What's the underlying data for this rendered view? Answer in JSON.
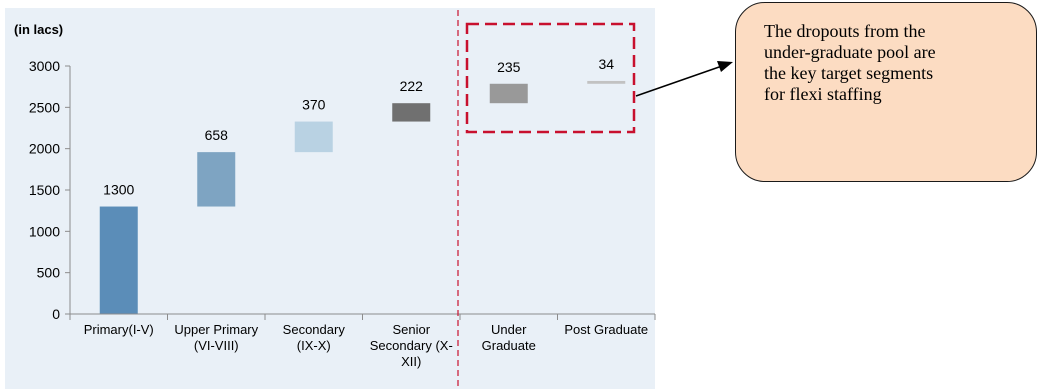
{
  "chart_data": {
    "type": "bar",
    "subtype": "waterfall",
    "unit_label": "(in lacs)",
    "ylim": [
      0,
      3000
    ],
    "yticks": [
      0,
      500,
      1000,
      1500,
      2000,
      2500,
      3000
    ],
    "categories": [
      [
        "Primary(I-V)"
      ],
      [
        "Upper Primary",
        "(VI-VIII)"
      ],
      [
        "Secondary",
        "(IX-X)"
      ],
      [
        "Senior",
        "Secondary (X-",
        "XII)"
      ],
      [
        "Under",
        "Graduate"
      ],
      [
        "Post Graduate"
      ]
    ],
    "values": [
      1300,
      658,
      370,
      222,
      235,
      34
    ],
    "bar_base": [
      0,
      1300,
      1958,
      2328,
      2550,
      2785
    ],
    "data_labels": [
      "1300",
      "658",
      "370",
      "222",
      "235",
      "34"
    ],
    "colors": [
      "#5b8db8",
      "#7ea4c2",
      "#b9d2e3",
      "#707070",
      "#999999",
      "#c2c2c2"
    ],
    "plot_background": "#e9f0f7",
    "highlight": {
      "categories": [
        "Under Graduate",
        "Post Graduate"
      ],
      "color": "#c8102e",
      "style": "dashed"
    }
  },
  "callout": {
    "lines": [
      "The dropouts from the",
      "under-graduate pool are",
      "the key target segments",
      "for flexi staffing"
    ],
    "fill": "#fcdcc2"
  }
}
